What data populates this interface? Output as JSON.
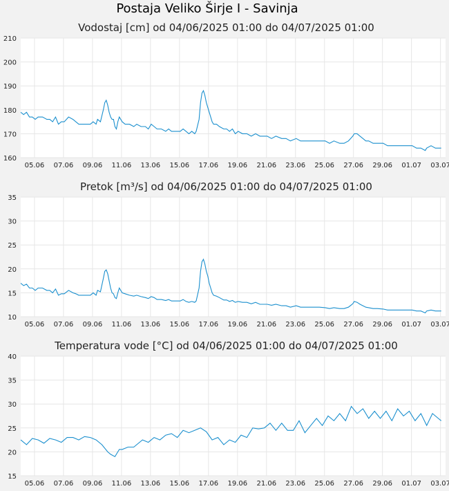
{
  "title": "Postaja Veliko Širje I - Savinja",
  "x_tick_labels": [
    "05.06",
    "07.06",
    "09.06",
    "11.06",
    "13.06",
    "15.06",
    "17.06",
    "19.06",
    "21.06",
    "23.06",
    "25.06",
    "27.06",
    "29.06",
    "01.07",
    "03.07"
  ],
  "colors": {
    "series": "#1a8fce",
    "grid": "#e6e6e6",
    "background": "#f2f2f2",
    "plot": "#ffffff"
  },
  "chart_data": [
    {
      "type": "line",
      "title": "Vodostaj [cm] od 04/06/2025 01:00 do 04/07/2025 01:00",
      "ylim": [
        160,
        210
      ],
      "yticks": [
        160,
        170,
        180,
        190,
        200,
        210
      ],
      "grid": true,
      "xlabel": "",
      "ylabel": "",
      "x_unit": "days since 04/06/2025 01:00",
      "points": [
        [
          0,
          179
        ],
        [
          0.2,
          178
        ],
        [
          0.4,
          179
        ],
        [
          0.6,
          177
        ],
        [
          0.8,
          177
        ],
        [
          1,
          176
        ],
        [
          1.2,
          177
        ],
        [
          1.5,
          177
        ],
        [
          1.8,
          176
        ],
        [
          2,
          176
        ],
        [
          2.2,
          175
        ],
        [
          2.4,
          177
        ],
        [
          2.6,
          174
        ],
        [
          2.8,
          175
        ],
        [
          3,
          175
        ],
        [
          3.3,
          177
        ],
        [
          3.6,
          176
        ],
        [
          3.8,
          175
        ],
        [
          4,
          174
        ],
        [
          4.2,
          174
        ],
        [
          4.5,
          174
        ],
        [
          4.8,
          174
        ],
        [
          5,
          175
        ],
        [
          5.2,
          174
        ],
        [
          5.3,
          176
        ],
        [
          5.5,
          175
        ],
        [
          5.7,
          180
        ],
        [
          5.8,
          183
        ],
        [
          5.9,
          184
        ],
        [
          6,
          182
        ],
        [
          6.1,
          179
        ],
        [
          6.2,
          177
        ],
        [
          6.3,
          176
        ],
        [
          6.4,
          176
        ],
        [
          6.5,
          173
        ],
        [
          6.6,
          172
        ],
        [
          6.7,
          175
        ],
        [
          6.8,
          177
        ],
        [
          6.9,
          176
        ],
        [
          7,
          175
        ],
        [
          7.2,
          174
        ],
        [
          7.5,
          174
        ],
        [
          7.8,
          173
        ],
        [
          8,
          174
        ],
        [
          8.3,
          173
        ],
        [
          8.6,
          173
        ],
        [
          8.8,
          172
        ],
        [
          9,
          174
        ],
        [
          9.2,
          173
        ],
        [
          9.4,
          172
        ],
        [
          9.7,
          172
        ],
        [
          10,
          171
        ],
        [
          10.2,
          172
        ],
        [
          10.4,
          171
        ],
        [
          10.7,
          171
        ],
        [
          11,
          171
        ],
        [
          11.2,
          172
        ],
        [
          11.4,
          171
        ],
        [
          11.6,
          170
        ],
        [
          11.8,
          171
        ],
        [
          12,
          170
        ],
        [
          12.1,
          171
        ],
        [
          12.3,
          176
        ],
        [
          12.4,
          183
        ],
        [
          12.5,
          187
        ],
        [
          12.6,
          188
        ],
        [
          12.7,
          186
        ],
        [
          12.8,
          183
        ],
        [
          12.9,
          181
        ],
        [
          13,
          179
        ],
        [
          13.1,
          177
        ],
        [
          13.2,
          175
        ],
        [
          13.3,
          174
        ],
        [
          13.5,
          174
        ],
        [
          13.7,
          173
        ],
        [
          14,
          172
        ],
        [
          14.2,
          172
        ],
        [
          14.4,
          171
        ],
        [
          14.6,
          172
        ],
        [
          14.8,
          170
        ],
        [
          15,
          171
        ],
        [
          15.3,
          170
        ],
        [
          15.6,
          170
        ],
        [
          15.9,
          169
        ],
        [
          16.2,
          170
        ],
        [
          16.5,
          169
        ],
        [
          16.8,
          169
        ],
        [
          17,
          169
        ],
        [
          17.3,
          168
        ],
        [
          17.6,
          169
        ],
        [
          18,
          168
        ],
        [
          18.3,
          168
        ],
        [
          18.6,
          167
        ],
        [
          19,
          168
        ],
        [
          19.3,
          167
        ],
        [
          19.6,
          167
        ],
        [
          20,
          167
        ],
        [
          20.3,
          167
        ],
        [
          20.6,
          167
        ],
        [
          21,
          167
        ],
        [
          21.3,
          166
        ],
        [
          21.6,
          167
        ],
        [
          22,
          166
        ],
        [
          22.3,
          166
        ],
        [
          22.6,
          167
        ],
        [
          22.9,
          169
        ],
        [
          23,
          170
        ],
        [
          23.2,
          170
        ],
        [
          23.4,
          169
        ],
        [
          23.6,
          168
        ],
        [
          23.8,
          167
        ],
        [
          24,
          167
        ],
        [
          24.3,
          166
        ],
        [
          24.6,
          166
        ],
        [
          25,
          166
        ],
        [
          25.3,
          165
        ],
        [
          25.6,
          165
        ],
        [
          26,
          165
        ],
        [
          26.3,
          165
        ],
        [
          26.6,
          165
        ],
        [
          27,
          165
        ],
        [
          27.3,
          164
        ],
        [
          27.6,
          164
        ],
        [
          27.9,
          163
        ],
        [
          28,
          164
        ],
        [
          28.3,
          165
        ],
        [
          28.6,
          164
        ],
        [
          29,
          164
        ]
      ]
    },
    {
      "type": "line",
      "title": "Pretok [m³/s] od 04/06/2025 01:00 do 04/07/2025 01:00",
      "ylim": [
        10,
        35
      ],
      "yticks": [
        10,
        15,
        20,
        25,
        30,
        35
      ],
      "grid": true,
      "xlabel": "",
      "ylabel": "",
      "x_unit": "days since 04/06/2025 01:00",
      "points": [
        [
          0,
          17
        ],
        [
          0.2,
          16.5
        ],
        [
          0.4,
          16.8
        ],
        [
          0.6,
          16
        ],
        [
          0.8,
          16
        ],
        [
          1,
          15.5
        ],
        [
          1.2,
          16
        ],
        [
          1.5,
          16
        ],
        [
          1.8,
          15.5
        ],
        [
          2,
          15.5
        ],
        [
          2.2,
          15
        ],
        [
          2.4,
          15.8
        ],
        [
          2.6,
          14.5
        ],
        [
          2.8,
          14.8
        ],
        [
          3,
          14.8
        ],
        [
          3.3,
          15.5
        ],
        [
          3.6,
          15
        ],
        [
          3.8,
          14.8
        ],
        [
          4,
          14.5
        ],
        [
          4.2,
          14.5
        ],
        [
          4.5,
          14.5
        ],
        [
          4.8,
          14.5
        ],
        [
          5,
          15
        ],
        [
          5.2,
          14.5
        ],
        [
          5.3,
          15.5
        ],
        [
          5.5,
          15.2
        ],
        [
          5.7,
          18
        ],
        [
          5.8,
          19.5
        ],
        [
          5.9,
          19.8
        ],
        [
          6,
          19
        ],
        [
          6.1,
          17.5
        ],
        [
          6.2,
          16
        ],
        [
          6.3,
          15
        ],
        [
          6.4,
          14.8
        ],
        [
          6.5,
          14
        ],
        [
          6.6,
          13.8
        ],
        [
          6.7,
          15
        ],
        [
          6.8,
          16
        ],
        [
          6.9,
          15.5
        ],
        [
          7,
          15
        ],
        [
          7.2,
          14.8
        ],
        [
          7.5,
          14.5
        ],
        [
          7.8,
          14.3
        ],
        [
          8,
          14.5
        ],
        [
          8.3,
          14.2
        ],
        [
          8.6,
          14
        ],
        [
          8.8,
          13.8
        ],
        [
          9,
          14.2
        ],
        [
          9.2,
          14
        ],
        [
          9.4,
          13.6
        ],
        [
          9.7,
          13.6
        ],
        [
          10,
          13.4
        ],
        [
          10.2,
          13.6
        ],
        [
          10.4,
          13.3
        ],
        [
          10.7,
          13.3
        ],
        [
          11,
          13.3
        ],
        [
          11.2,
          13.6
        ],
        [
          11.4,
          13.2
        ],
        [
          11.6,
          13
        ],
        [
          11.8,
          13.2
        ],
        [
          12,
          13
        ],
        [
          12.1,
          13.3
        ],
        [
          12.3,
          16
        ],
        [
          12.4,
          19.5
        ],
        [
          12.5,
          21.5
        ],
        [
          12.6,
          22
        ],
        [
          12.7,
          21
        ],
        [
          12.8,
          19.5
        ],
        [
          12.9,
          18.5
        ],
        [
          13,
          17
        ],
        [
          13.1,
          16
        ],
        [
          13.2,
          15
        ],
        [
          13.3,
          14.5
        ],
        [
          13.5,
          14.3
        ],
        [
          13.7,
          14
        ],
        [
          14,
          13.5
        ],
        [
          14.2,
          13.5
        ],
        [
          14.4,
          13.2
        ],
        [
          14.6,
          13.4
        ],
        [
          14.8,
          13
        ],
        [
          15,
          13.2
        ],
        [
          15.3,
          13
        ],
        [
          15.6,
          13
        ],
        [
          15.9,
          12.7
        ],
        [
          16.2,
          13
        ],
        [
          16.5,
          12.6
        ],
        [
          16.8,
          12.6
        ],
        [
          17,
          12.6
        ],
        [
          17.3,
          12.4
        ],
        [
          17.6,
          12.6
        ],
        [
          18,
          12.3
        ],
        [
          18.3,
          12.3
        ],
        [
          18.6,
          12
        ],
        [
          19,
          12.3
        ],
        [
          19.3,
          12
        ],
        [
          19.6,
          12
        ],
        [
          20,
          12
        ],
        [
          20.3,
          12
        ],
        [
          20.6,
          12
        ],
        [
          21,
          11.9
        ],
        [
          21.3,
          11.7
        ],
        [
          21.6,
          11.9
        ],
        [
          22,
          11.7
        ],
        [
          22.3,
          11.7
        ],
        [
          22.6,
          12
        ],
        [
          22.9,
          12.7
        ],
        [
          23,
          13.2
        ],
        [
          23.2,
          13
        ],
        [
          23.4,
          12.6
        ],
        [
          23.6,
          12.3
        ],
        [
          23.8,
          12
        ],
        [
          24,
          11.9
        ],
        [
          24.3,
          11.7
        ],
        [
          24.6,
          11.7
        ],
        [
          25,
          11.6
        ],
        [
          25.3,
          11.4
        ],
        [
          25.6,
          11.4
        ],
        [
          26,
          11.4
        ],
        [
          26.3,
          11.4
        ],
        [
          26.6,
          11.4
        ],
        [
          27,
          11.4
        ],
        [
          27.3,
          11.2
        ],
        [
          27.6,
          11.2
        ],
        [
          27.9,
          10.8
        ],
        [
          28,
          11.2
        ],
        [
          28.3,
          11.4
        ],
        [
          28.6,
          11.2
        ],
        [
          29,
          11.2
        ]
      ]
    },
    {
      "type": "line",
      "title": "Temperatura vode [°C] od 04/06/2025 01:00 do 04/07/2025 01:00",
      "ylim": [
        15,
        40
      ],
      "yticks": [
        15,
        20,
        25,
        30,
        35,
        40
      ],
      "grid": true,
      "xlabel": "",
      "ylabel": "",
      "x_unit": "days since 04/06/2025 01:00",
      "points": [
        [
          0,
          22.5
        ],
        [
          0.4,
          21.5
        ],
        [
          0.8,
          22.8
        ],
        [
          1.2,
          22.5
        ],
        [
          1.6,
          21.8
        ],
        [
          2,
          22.8
        ],
        [
          2.4,
          22.5
        ],
        [
          2.8,
          22
        ],
        [
          3.2,
          23
        ],
        [
          3.6,
          23
        ],
        [
          4,
          22.5
        ],
        [
          4.4,
          23.2
        ],
        [
          4.8,
          23
        ],
        [
          5.2,
          22.5
        ],
        [
          5.6,
          21.5
        ],
        [
          6,
          20
        ],
        [
          6.2,
          19.5
        ],
        [
          6.5,
          19
        ],
        [
          6.8,
          20.5
        ],
        [
          7,
          20.5
        ],
        [
          7.4,
          21
        ],
        [
          7.8,
          21
        ],
        [
          8,
          21.5
        ],
        [
          8.4,
          22.5
        ],
        [
          8.8,
          22
        ],
        [
          9.2,
          23
        ],
        [
          9.6,
          22.5
        ],
        [
          10,
          23.5
        ],
        [
          10.4,
          23.8
        ],
        [
          10.8,
          23
        ],
        [
          11.2,
          24.5
        ],
        [
          11.6,
          24
        ],
        [
          12,
          24.5
        ],
        [
          12.4,
          25
        ],
        [
          12.8,
          24.2
        ],
        [
          13.2,
          22.5
        ],
        [
          13.6,
          23
        ],
        [
          14,
          21.5
        ],
        [
          14.4,
          22.5
        ],
        [
          14.8,
          22
        ],
        [
          15.2,
          23.5
        ],
        [
          15.6,
          23
        ],
        [
          16,
          25
        ],
        [
          16.4,
          24.8
        ],
        [
          16.8,
          25
        ],
        [
          17.2,
          26
        ],
        [
          17.6,
          24.5
        ],
        [
          18,
          26
        ],
        [
          18.4,
          24.5
        ],
        [
          18.8,
          24.5
        ],
        [
          19.2,
          26.5
        ],
        [
          19.6,
          24
        ],
        [
          20,
          25.5
        ],
        [
          20.4,
          27
        ],
        [
          20.8,
          25.5
        ],
        [
          21.2,
          27.5
        ],
        [
          21.6,
          26.5
        ],
        [
          22,
          28
        ],
        [
          22.4,
          26.5
        ],
        [
          22.8,
          29.5
        ],
        [
          23.2,
          28
        ],
        [
          23.6,
          29
        ],
        [
          24,
          27
        ],
        [
          24.4,
          28.5
        ],
        [
          24.8,
          27
        ],
        [
          25.2,
          28.5
        ],
        [
          25.6,
          26.5
        ],
        [
          26,
          29
        ],
        [
          26.4,
          27.5
        ],
        [
          26.8,
          28.5
        ],
        [
          27.2,
          26.5
        ],
        [
          27.6,
          28
        ],
        [
          28,
          25.5
        ],
        [
          28.4,
          28
        ],
        [
          28.8,
          27
        ],
        [
          29,
          26.5
        ]
      ]
    }
  ]
}
